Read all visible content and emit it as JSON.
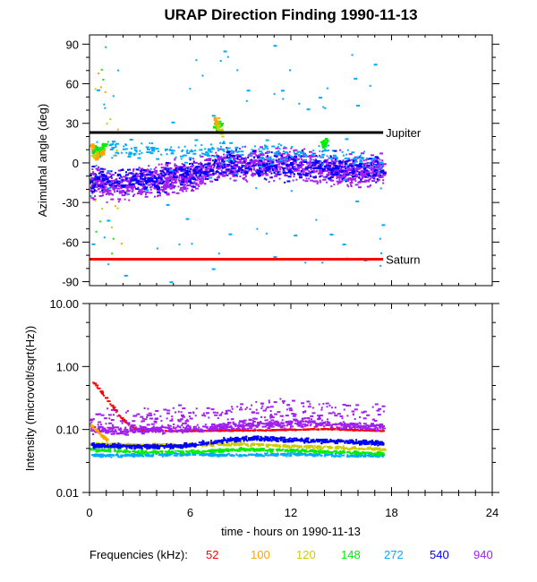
{
  "chart_data": [
    {
      "type": "scatter",
      "panel": "top",
      "title": "URAP Direction Finding  1990-11-13",
      "xlabel": "",
      "ylabel": "Azimuthal angle (deg)",
      "xlim": [
        0,
        24
      ],
      "ylim": [
        -93,
        97
      ],
      "y_ticks": [
        "90",
        "60",
        "30",
        "0",
        "-30",
        "-60",
        "-90"
      ],
      "y_tick_values": [
        90,
        60,
        30,
        0,
        -30,
        -60,
        -90
      ],
      "reference_lines": [
        {
          "label": "Jupiter",
          "y": 23,
          "x_range": [
            0,
            17.5
          ],
          "color": "#000000"
        },
        {
          "label": "Saturn",
          "y": -73,
          "x_range": [
            0,
            17.5
          ],
          "color": "#ff0000"
        }
      ],
      "series": [
        {
          "name": "940",
          "color": "#a020f0",
          "x_range": [
            0,
            17.5
          ],
          "y_center_profile": [
            [
              0,
              -15
            ],
            [
              2,
              -17
            ],
            [
              4,
              -12
            ],
            [
              6,
              -10
            ],
            [
              7.5,
              -2
            ],
            [
              9,
              -1
            ],
            [
              11,
              0
            ],
            [
              12.5,
              -1
            ],
            [
              14,
              -3
            ],
            [
              15.5,
              -6
            ],
            [
              17.5,
              -5
            ]
          ],
          "y_spread": 10
        },
        {
          "name": "540",
          "color": "#0000ff",
          "x_range": [
            0,
            17.5
          ],
          "y_center_profile": [
            [
              0,
              -12
            ],
            [
              4,
              -12
            ],
            [
              8,
              0
            ],
            [
              12,
              -2
            ],
            [
              17.5,
              -4
            ]
          ],
          "y_spread": 9
        },
        {
          "name": "272",
          "color": "#00aaff",
          "x_range": [
            0,
            17.5
          ],
          "y_center_profile": [
            [
              7.5,
              10
            ],
            [
              10,
              8
            ],
            [
              14,
              7
            ],
            [
              17,
              2
            ]
          ],
          "y_spread": 6
        },
        {
          "name": "148",
          "color": "#00ee00",
          "x_range": [
            0,
            14
          ],
          "points": [
            [
              0.3,
              11
            ],
            [
              0.5,
              9
            ],
            [
              0.8,
              13
            ],
            [
              7.5,
              27
            ],
            [
              7.7,
              30
            ],
            [
              13.9,
              15
            ],
            [
              14,
              17
            ]
          ]
        },
        {
          "name": "120",
          "color": "#cccc00",
          "x_range": [
            0,
            8
          ],
          "points": [
            [
              0.3,
              6
            ],
            [
              7.6,
              28
            ],
            [
              7.8,
              24
            ]
          ]
        },
        {
          "name": "100",
          "color": "#ffa500",
          "x_range": [
            0,
            8
          ],
          "points": [
            [
              0.1,
              13
            ],
            [
              0.4,
              5
            ],
            [
              0.7,
              8
            ],
            [
              7.5,
              33
            ]
          ]
        }
      ]
    },
    {
      "type": "scatter",
      "panel": "bottom",
      "xlabel": "time - hours on 1990-11-13",
      "ylabel": "Intensity (microvolt/sqrt(Hz))",
      "yscale": "log",
      "xlim": [
        0,
        24
      ],
      "ylim": [
        0.01,
        10
      ],
      "x_ticks": [
        "0",
        "6",
        "12",
        "18",
        "24"
      ],
      "x_tick_values": [
        0,
        6,
        12,
        18,
        24
      ],
      "y_ticks": [
        "10.00",
        "1.00",
        "0.10",
        "0.01"
      ],
      "y_tick_values": [
        10,
        1,
        0.1,
        0.01
      ],
      "series": [
        {
          "name": "52",
          "color": "#ff0000",
          "profile": [
            [
              0,
              0.65
            ],
            [
              0.5,
              0.45
            ],
            [
              1,
              0.3
            ],
            [
              1.5,
              0.2
            ],
            [
              2,
              0.14
            ],
            [
              2.5,
              0.11
            ],
            [
              3,
              0.1
            ],
            [
              5,
              0.098
            ],
            [
              10,
              0.1
            ],
            [
              14,
              0.105
            ],
            [
              17.5,
              0.098
            ]
          ]
        },
        {
          "name": "100",
          "color": "#ffa500",
          "profile": [
            [
              0,
              0.12
            ],
            [
              0.5,
              0.09
            ],
            [
              1,
              0.07
            ]
          ]
        },
        {
          "name": "120",
          "color": "#cccc00",
          "profile": [
            [
              0,
              0.06
            ],
            [
              5,
              0.058
            ],
            [
              9,
              0.06
            ],
            [
              13,
              0.055
            ],
            [
              17.5,
              0.05
            ]
          ]
        },
        {
          "name": "148",
          "color": "#00ee00",
          "profile": [
            [
              0,
              0.05
            ],
            [
              3,
              0.045
            ],
            [
              6,
              0.045
            ],
            [
              9,
              0.05
            ],
            [
              12,
              0.048
            ],
            [
              15,
              0.045
            ],
            [
              17.5,
              0.042
            ]
          ]
        },
        {
          "name": "272",
          "color": "#00aaff",
          "profile": [
            [
              0,
              0.04
            ],
            [
              3,
              0.04
            ],
            [
              6,
              0.042
            ],
            [
              9,
              0.04
            ],
            [
              12,
              0.042
            ],
            [
              15,
              0.04
            ],
            [
              17.5,
              0.04
            ]
          ]
        },
        {
          "name": "540",
          "color": "#0000ff",
          "profile": [
            [
              0,
              0.058
            ],
            [
              3,
              0.055
            ],
            [
              6,
              0.057
            ],
            [
              8,
              0.07
            ],
            [
              10,
              0.075
            ],
            [
              12,
              0.07
            ],
            [
              14,
              0.068
            ],
            [
              17.5,
              0.062
            ]
          ]
        },
        {
          "name": "940",
          "color": "#a020f0",
          "profile": [
            [
              0,
              0.1
            ],
            [
              3,
              0.1
            ],
            [
              6,
              0.105
            ],
            [
              9,
              0.12
            ],
            [
              12,
              0.13
            ],
            [
              14,
              0.125
            ],
            [
              17.5,
              0.11
            ]
          ]
        }
      ]
    }
  ],
  "legend": {
    "label": "Frequencies (kHz):",
    "items": [
      {
        "text": "52",
        "color": "#ff0000"
      },
      {
        "text": "100",
        "color": "#ffa500"
      },
      {
        "text": "120",
        "color": "#cccc00"
      },
      {
        "text": "148",
        "color": "#00ee00"
      },
      {
        "text": "272",
        "color": "#00aaff"
      },
      {
        "text": "540",
        "color": "#0000ff"
      },
      {
        "text": "940",
        "color": "#a020f0"
      }
    ]
  }
}
